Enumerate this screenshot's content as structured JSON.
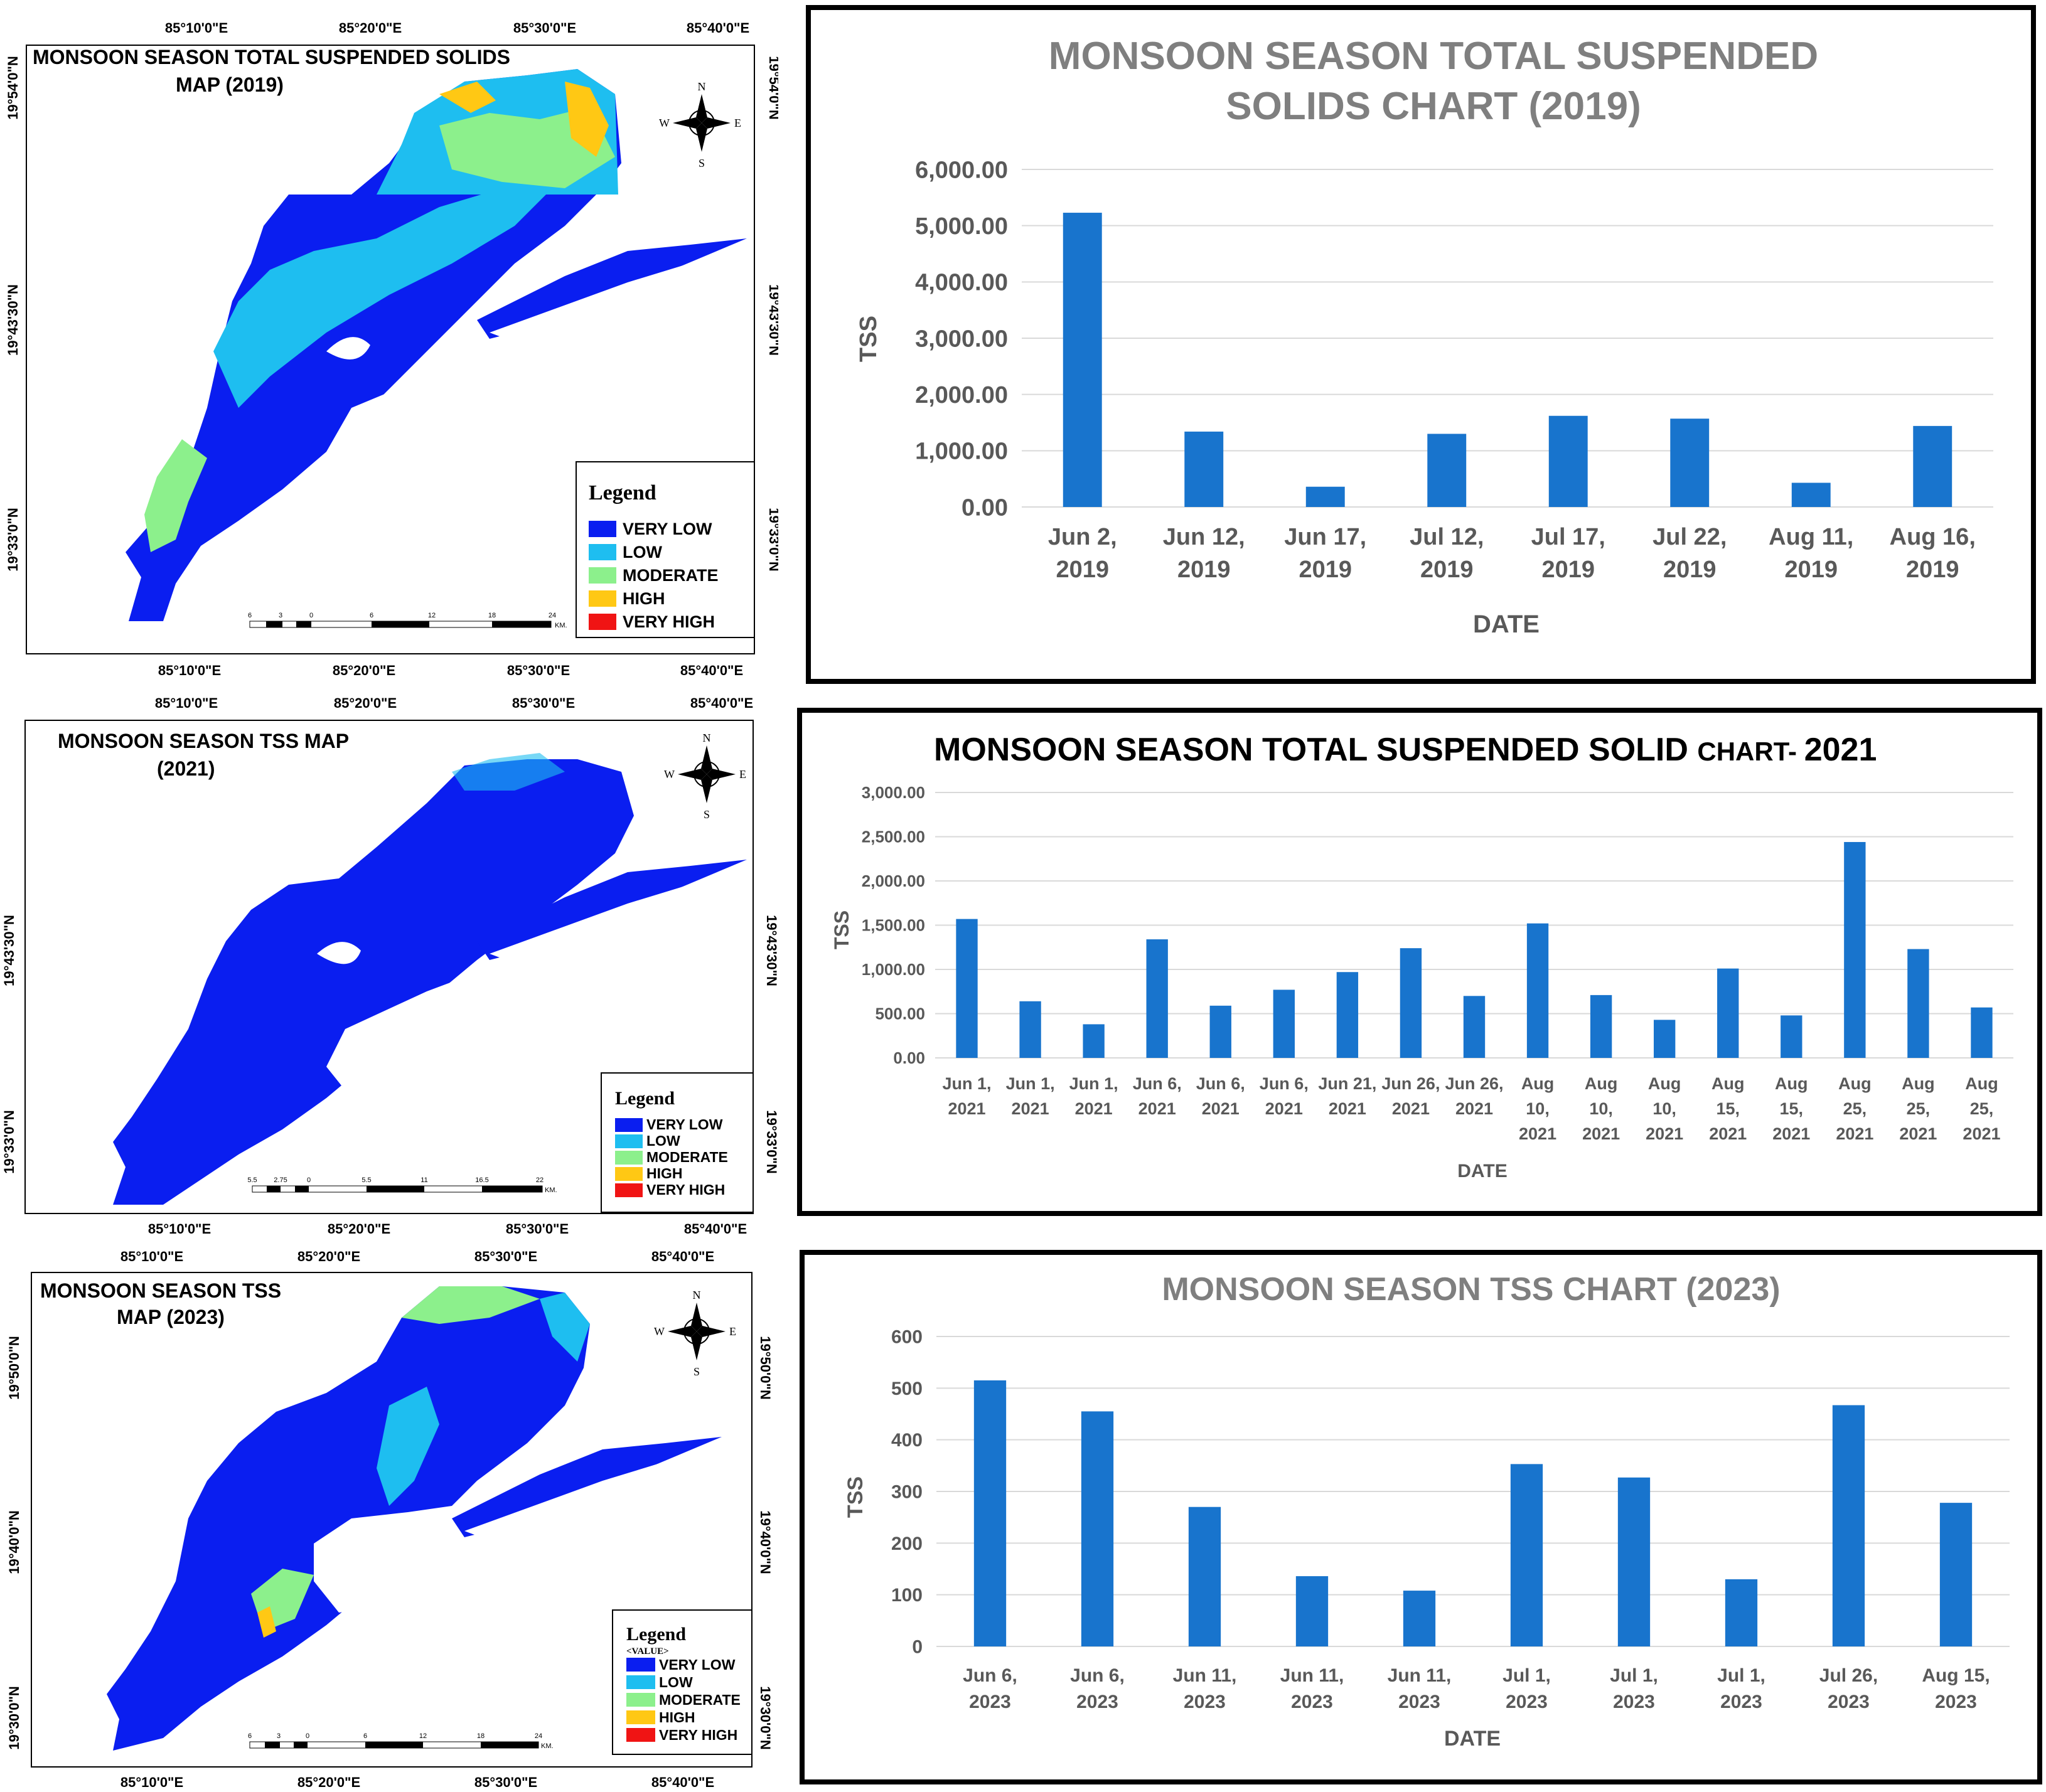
{
  "colors": {
    "bar": "#1874CD",
    "very_low": "#0A1EF0",
    "low": "#1EBEF0",
    "moderate": "#8CF08C",
    "high": "#FFC814",
    "very_high": "#F01414",
    "grid": "#D9D9D9",
    "axis_text": "#595959",
    "title_grey": "#7F7F7F"
  },
  "maps": [
    {
      "title_line1": "MONSOON SEASON TOTAL SUSPENDED SOLIDS",
      "title_line2": "MAP  (2019)",
      "top_lon": [
        "85°10'0\"E",
        "85°20'0\"E",
        "85°30'0\"E",
        "85°40'0\"E"
      ],
      "bottom_lon": [
        "85°10'0\"E",
        "85°20'0\"E",
        "85°30'0\"E",
        "85°40'0\"E"
      ],
      "lat": [
        "19°54'0\"N",
        "19°43'30\"N",
        "19°33'0\"N"
      ],
      "legend_title": "Legend",
      "legend_value": "",
      "legend_items": [
        "VERY LOW",
        "LOW",
        "MODERATE",
        "HIGH",
        "VERY HIGH"
      ],
      "scale_labels": [
        "6",
        "3",
        "0",
        "6",
        "12",
        "18",
        "24"
      ],
      "scale_unit": "KM.",
      "compass": {
        "n": "N",
        "s": "S",
        "e": "E",
        "w": "W"
      }
    },
    {
      "title_line1": "MONSOON SEASON TSS MAP",
      "title_line2": "(2021)",
      "top_lon": [
        "85°10'0\"E",
        "85°20'0\"E",
        "85°30'0\"E",
        "85°40'0\"E"
      ],
      "bottom_lon": [
        "85°10'0\"E",
        "85°20'0\"E",
        "85°30'0\"E",
        "85°40'0\"E"
      ],
      "lat": [
        "19°43'30\"N",
        "19°33'0\"N"
      ],
      "legend_title": "Legend",
      "legend_value": "",
      "legend_items": [
        "VERY LOW",
        "LOW",
        "MODERATE",
        "HIGH",
        "VERY HIGH"
      ],
      "scale_labels": [
        "5.5",
        "2.75",
        "0",
        "5.5",
        "11",
        "16.5",
        "22"
      ],
      "scale_unit": "KM.",
      "compass": {
        "n": "N",
        "s": "S",
        "e": "E",
        "w": "W"
      }
    },
    {
      "title_line1": "MONSOON SEASON TSS",
      "title_line2": "MAP (2023)",
      "top_lon": [
        "85°10'0\"E",
        "85°20'0\"E",
        "85°30'0\"E",
        "85°40'0\"E"
      ],
      "bottom_lon": [
        "85°10'0\"E",
        "85°20'0\"E",
        "85°30'0\"E",
        "85°40'0\"E"
      ],
      "lat": [
        "19°50'0\"N",
        "19°40'0\"N",
        "19°30'0\"N"
      ],
      "legend_title": "Legend",
      "legend_value": "<VALUE>",
      "legend_items": [
        "VERY LOW",
        "LOW",
        "MODERATE",
        "HIGH",
        "VERY HIGH"
      ],
      "scale_labels": [
        "6",
        "3",
        "0",
        "6",
        "12",
        "18",
        "24"
      ],
      "scale_unit": "KM.",
      "compass": {
        "n": "N",
        "s": "S",
        "e": "E",
        "w": "W"
      }
    }
  ],
  "chart_data": [
    {
      "type": "bar",
      "title": "MONSOON SEASON TOTAL SUSPENDED SOLIDS CHART (2019)",
      "title_lines": [
        "MONSOON SEASON TOTAL SUSPENDED",
        "SOLIDS CHART (2019)"
      ],
      "xlabel": "DATE",
      "ylabel": "TSS",
      "ylim": [
        0,
        6000
      ],
      "yticks": [
        "0.00",
        "1,000.00",
        "2,000.00",
        "3,000.00",
        "4,000.00",
        "5,000.00",
        "6,000.00"
      ],
      "categories": [
        [
          "Jun 2,",
          "2019"
        ],
        [
          "Jun 12,",
          "2019"
        ],
        [
          "Jun 17,",
          "2019"
        ],
        [
          "Jul 12,",
          "2019"
        ],
        [
          "Jul 17,",
          "2019"
        ],
        [
          "Jul 22,",
          "2019"
        ],
        [
          "Aug 11,",
          "2019"
        ],
        [
          "Aug 16,",
          "2019"
        ]
      ],
      "values": [
        5230,
        1340,
        360,
        1300,
        1620,
        1570,
        430,
        1440
      ],
      "grid": true
    },
    {
      "type": "bar",
      "title": "MONSOON SEASON TOTAL SUSPENDED SOLID CHART- 2021",
      "title_parts": [
        "MONSOON SEASON TOTAL SUSPENDED SOLID ",
        "CHART- ",
        "2021"
      ],
      "xlabel": "DATE",
      "ylabel": "TSS",
      "ylim": [
        0,
        3000
      ],
      "yticks": [
        "0.00",
        "500.00",
        "1,000.00",
        "1,500.00",
        "2,000.00",
        "2,500.00",
        "3,000.00"
      ],
      "categories": [
        [
          "Jun 1,",
          "2021"
        ],
        [
          "Jun 1,",
          "2021"
        ],
        [
          "Jun 1,",
          "2021"
        ],
        [
          "Jun 6,",
          "2021"
        ],
        [
          "Jun 6,",
          "2021"
        ],
        [
          "Jun 6,",
          "2021"
        ],
        [
          "Jun 21,",
          "2021"
        ],
        [
          "Jun 26,",
          "2021"
        ],
        [
          "Jun 26,",
          "2021"
        ],
        [
          "Aug",
          "10,",
          "2021"
        ],
        [
          "Aug",
          "10,",
          "2021"
        ],
        [
          "Aug",
          "10,",
          "2021"
        ],
        [
          "Aug",
          "15,",
          "2021"
        ],
        [
          "Aug",
          "15,",
          "2021"
        ],
        [
          "Aug",
          "25,",
          "2021"
        ],
        [
          "Aug",
          "25,",
          "2021"
        ],
        [
          "Aug",
          "25,",
          "2021"
        ]
      ],
      "values": [
        1570,
        640,
        380,
        1340,
        590,
        770,
        970,
        1240,
        700,
        1520,
        710,
        430,
        1010,
        480,
        2440,
        1230,
        570
      ],
      "grid": true
    },
    {
      "type": "bar",
      "title": "MONSOON SEASON TSS CHART (2023)",
      "xlabel": "DATE",
      "ylabel": "TSS",
      "ylim": [
        0,
        600
      ],
      "yticks": [
        "0",
        "100",
        "200",
        "300",
        "400",
        "500",
        "600"
      ],
      "categories": [
        [
          "Jun 6,",
          "2023"
        ],
        [
          "Jun 6,",
          "2023"
        ],
        [
          "Jun 11,",
          "2023"
        ],
        [
          "Jun 11,",
          "2023"
        ],
        [
          "Jun 11,",
          "2023"
        ],
        [
          "Jul 1,",
          "2023"
        ],
        [
          "Jul 1,",
          "2023"
        ],
        [
          "Jul 1,",
          "2023"
        ],
        [
          "Jul 26,",
          "2023"
        ],
        [
          "Aug 15,",
          "2023"
        ]
      ],
      "values": [
        515,
        455,
        270,
        136,
        108,
        353,
        327,
        130,
        467,
        278
      ],
      "grid": true
    }
  ]
}
